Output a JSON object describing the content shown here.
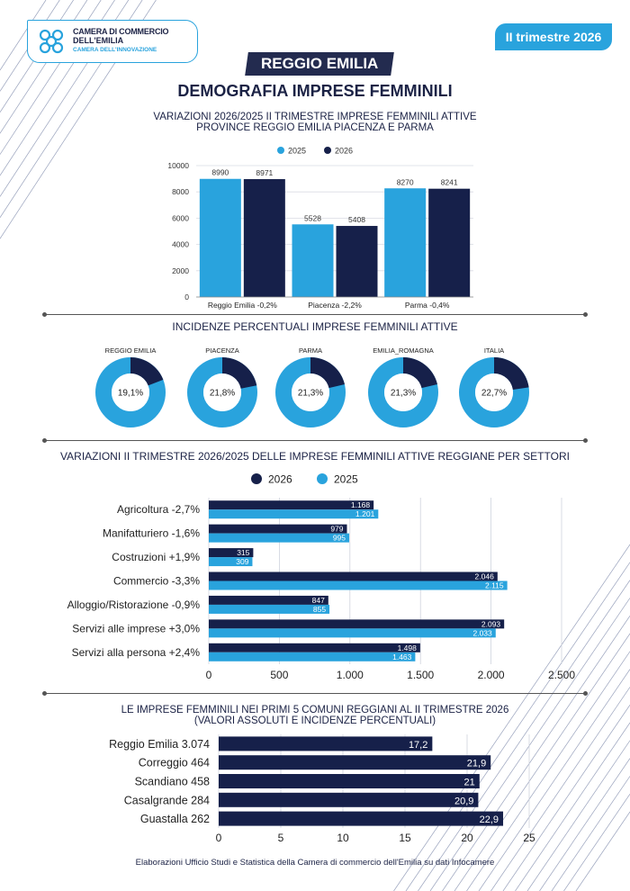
{
  "header": {
    "logo_line1": "CAMERA DI COMMERCIO",
    "logo_line2": "DELL'EMILIA",
    "logo_line3": "CAMERA DELL'INNOVAZIONE",
    "quarter_badge": "II trimestre 2026",
    "region": "REGGIO EMILIA",
    "title": "DEMOGRAFIA IMPRESE FEMMINILI"
  },
  "colors": {
    "navy": "#16204a",
    "light_blue": "#29a3dd",
    "grey": "#cfd3dd"
  },
  "sections": {
    "s1_title_l1": "VARIAZIONI 2026/2025 II TRIMESTRE IMPRESE FEMMINILI ATTIVE",
    "s1_title_l2": "PROVINCE REGGIO EMILIA PIACENZA E PARMA",
    "s2_title": "INCIDENZE PERCENTUALI IMPRESE FEMMINILI ATTIVE",
    "s3_title": "VARIAZIONI II TRIMESTRE 2026/2025 DELLE IMPRESE FEMMINILI ATTIVE REGGIANE PER SETTORI",
    "s4_title_l1": "LE IMPRESE FEMMINILI NEI PRIMI 5 COMUNI REGGIANI AL II TRIMESTRE 2026",
    "s4_title_l2": "(VALORI ASSOLUTI E INCIDENZE PERCENTUALI)"
  },
  "footer": "Elaborazioni Ufficio Studi e Statistica della Camera di commercio dell'Emilia su dati Infocamere",
  "chart_data": [
    {
      "type": "bar",
      "categories": [
        "Reggio Emilia -0,2%",
        "Piacenza -2,2%",
        "Parma -0,4%"
      ],
      "series": [
        {
          "name": "2025",
          "values": [
            8990,
            5528,
            8270
          ],
          "labels": [
            "8990",
            "5528",
            "8270"
          ]
        },
        {
          "name": "2026",
          "values": [
            8971,
            5408,
            8241
          ],
          "labels": [
            "8971",
            "5408",
            "8241"
          ]
        }
      ],
      "ylim": [
        0,
        10000
      ],
      "yticks": [
        0,
        2000,
        4000,
        6000,
        8000,
        10000
      ],
      "ytick_labels": [
        "0",
        "2000",
        "4000",
        "6000",
        "8000",
        "10000"
      ],
      "legend": "top"
    },
    {
      "type": "pie",
      "charts": [
        {
          "name": "REGGIO EMILIA",
          "value": 19.1,
          "label": "19,1%"
        },
        {
          "name": "PIACENZA",
          "value": 21.8,
          "label": "21,8%"
        },
        {
          "name": "PARMA",
          "value": 21.3,
          "label": "21,3%"
        },
        {
          "name": "EMILIA_ROMAGNA",
          "value": 21.3,
          "label": "21,3%"
        },
        {
          "name": "ITALIA",
          "value": 22.7,
          "label": "22,7%"
        }
      ]
    },
    {
      "type": "bar",
      "orientation": "horizontal",
      "categories": [
        "Agricoltura -2,7%",
        "Manifatturiero -1,6%",
        "Costruzioni +1,9%",
        "Commercio -3,3%",
        "Alloggio/Ristorazione -0,9%",
        "Servizi alle imprese +3,0%",
        "Servizi alla persona +2,4%"
      ],
      "series": [
        {
          "name": "2026",
          "values": [
            1168,
            979,
            315,
            2046,
            847,
            2093,
            1498
          ],
          "labels": [
            "1.168",
            "979",
            "315",
            "2.046",
            "847",
            "2.093",
            "1.498"
          ]
        },
        {
          "name": "2025",
          "values": [
            1201,
            995,
            309,
            2115,
            855,
            2033,
            1463
          ],
          "labels": [
            "1.201",
            "995",
            "309",
            "2.115",
            "855",
            "2.033",
            "1.463"
          ]
        }
      ],
      "xlim": [
        0,
        2500
      ],
      "xticks": [
        0,
        500,
        1000,
        1500,
        2000,
        2500
      ],
      "xtick_labels": [
        "0",
        "500",
        "1.000",
        "1.500",
        "2.000",
        "2.500"
      ],
      "legend": "top"
    },
    {
      "type": "bar",
      "orientation": "horizontal",
      "categories": [
        "Reggio Emilia 3.074",
        "Correggio 464",
        "Scandiano 458",
        "Casalgrande 284",
        "Guastalla 262"
      ],
      "values": [
        17.2,
        21.9,
        21,
        20.9,
        22.9
      ],
      "labels": [
        "17,2",
        "21,9",
        "21",
        "20,9",
        "22,9"
      ],
      "xlim": [
        0,
        25
      ],
      "xticks": [
        0,
        5,
        10,
        15,
        20,
        25
      ],
      "xtick_labels": [
        "0",
        "5",
        "10",
        "15",
        "20",
        "25"
      ]
    }
  ]
}
